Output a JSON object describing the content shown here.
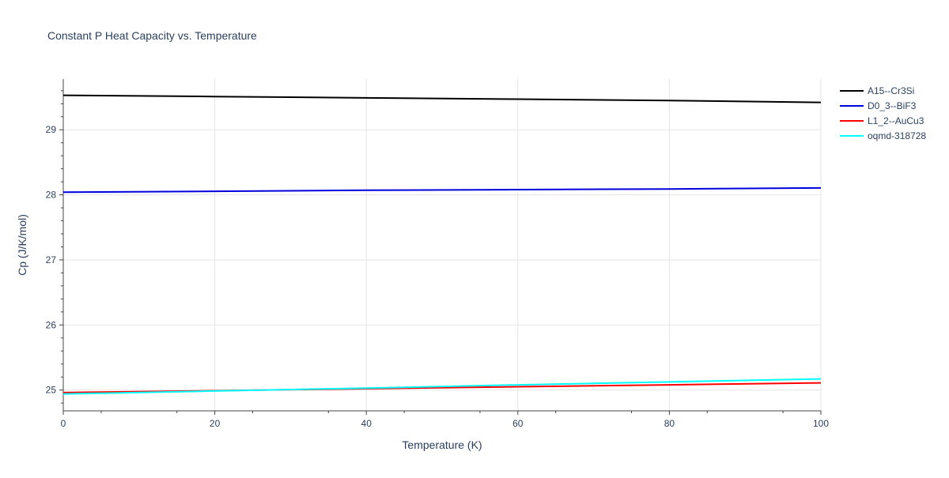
{
  "chart_data": {
    "type": "line",
    "title": "Constant P Heat Capacity vs. Temperature",
    "xlabel": "Temperature (K)",
    "ylabel": "Cp (J/K/mol)",
    "xlim": [
      0,
      100
    ],
    "ylim": [
      24.68,
      29.78
    ],
    "x_ticks": [
      0,
      20,
      40,
      60,
      80,
      100
    ],
    "x_tick_labels": [
      "0",
      "20",
      "40",
      "60",
      "80",
      "100"
    ],
    "y_ticks": [
      25,
      26,
      27,
      28,
      29
    ],
    "y_tick_labels": [
      "25",
      "26",
      "27",
      "28",
      "29"
    ],
    "grid": true,
    "legend_position": "top-right",
    "series": [
      {
        "name": "A15--Cr3Si",
        "color": "#000000",
        "x": [
          0,
          20,
          40,
          60,
          80,
          100
        ],
        "y": [
          29.53,
          29.51,
          29.49,
          29.47,
          29.45,
          29.42
        ]
      },
      {
        "name": "D0_3--BiF3",
        "color": "#0000dd",
        "x": [
          0,
          20,
          40,
          60,
          80,
          100
        ],
        "y": [
          28.04,
          28.055,
          28.07,
          28.08,
          28.09,
          28.105
        ]
      },
      {
        "name": "L1_2--AuCu3",
        "color": "#ff0000",
        "x": [
          0,
          20,
          40,
          60,
          80,
          100
        ],
        "y": [
          24.96,
          24.99,
          25.02,
          25.05,
          25.08,
          25.11
        ]
      },
      {
        "name": "oqmd-318728",
        "color": "#00ffff",
        "x": [
          0,
          20,
          40,
          60,
          80,
          100
        ],
        "y": [
          24.94,
          24.985,
          25.03,
          25.08,
          25.125,
          25.17
        ]
      }
    ]
  }
}
